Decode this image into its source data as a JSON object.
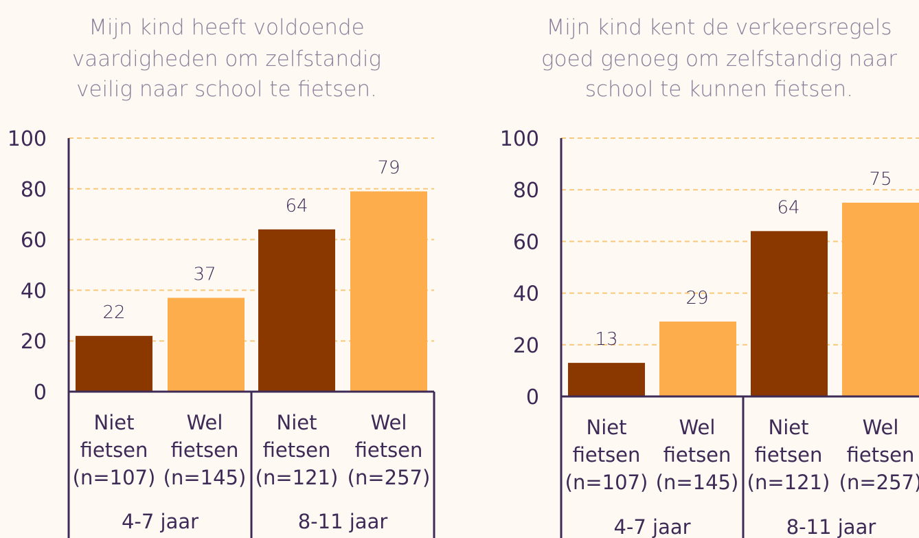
{
  "colors": {
    "niet": "#8a3800",
    "wel": "#fdad4b",
    "axis": "#3d2a56",
    "grid": "#f7c97a",
    "title": "#8a7d9a",
    "label": "#3d2a56",
    "value": "#3d2a56"
  },
  "chart_data": [
    {
      "type": "bar",
      "title_lines": [
        "Mijn kind heeft voldoende",
        "vaardigheden om zelfstandig",
        "veilig naar school te fietsen."
      ],
      "ylim": [
        0,
        100
      ],
      "yticks": [
        0,
        20,
        40,
        60,
        80,
        100
      ],
      "grid": true,
      "categories": [
        {
          "lines": [
            "Niet",
            "fietsen",
            "(n=107)"
          ],
          "series": "Niet fietsen"
        },
        {
          "lines": [
            "Wel",
            "fietsen",
            "(n=145)"
          ],
          "series": "Wel fietsen"
        },
        {
          "lines": [
            "Niet",
            "fietsen",
            "(n=121)"
          ],
          "series": "Niet fietsen"
        },
        {
          "lines": [
            "Wel",
            "fietsen",
            "(n=257)"
          ],
          "series": "Wel fietsen"
        }
      ],
      "groups": [
        "4-7 jaar",
        "8-11 jaar"
      ],
      "values": [
        22,
        37,
        64,
        79
      ]
    },
    {
      "type": "bar",
      "title_lines": [
        "Mijn kind kent de verkeersregels",
        "goed genoeg om zelfstandig naar",
        "school te kunnen fietsen."
      ],
      "ylim": [
        0,
        100
      ],
      "yticks": [
        0,
        20,
        40,
        60,
        80,
        100
      ],
      "grid": true,
      "categories": [
        {
          "lines": [
            "Niet",
            "fietsen",
            "(n=107)"
          ],
          "series": "Niet fietsen"
        },
        {
          "lines": [
            "Wel",
            "fietsen",
            "(n=145)"
          ],
          "series": "Wel fietsen"
        },
        {
          "lines": [
            "Niet",
            "fietsen",
            "(n=121)"
          ],
          "series": "Niet fietsen"
        },
        {
          "lines": [
            "Wel",
            "fietsen",
            "(n=257)"
          ],
          "series": "Wel fietsen"
        }
      ],
      "groups": [
        "4-7 jaar",
        "8-11 jaar"
      ],
      "values": [
        13,
        29,
        64,
        75
      ]
    }
  ]
}
